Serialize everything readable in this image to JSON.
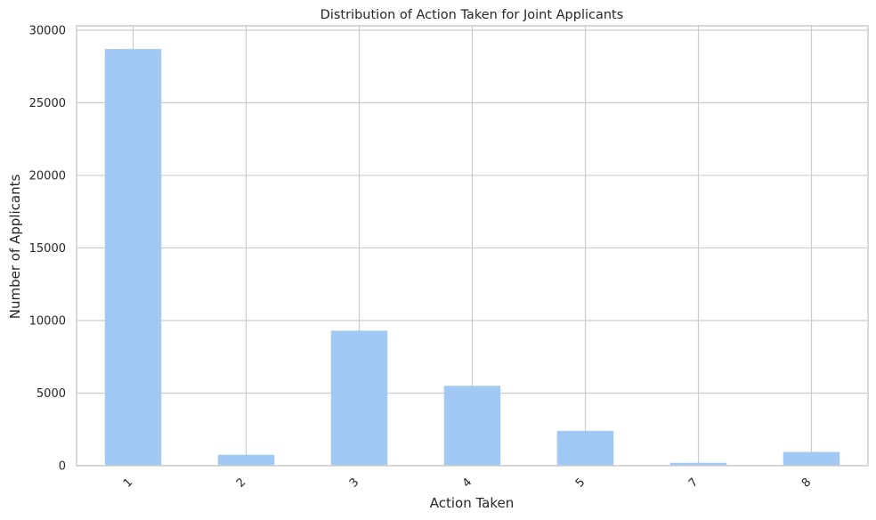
{
  "chart_data": {
    "type": "bar",
    "title": "Distribution of Action Taken for Joint Applicants",
    "xlabel": "Action Taken",
    "ylabel": "Number of Applicants",
    "categories": [
      "1",
      "2",
      "3",
      "4",
      "5",
      "7",
      "8"
    ],
    "values": [
      28700,
      750,
      9300,
      5500,
      2400,
      200,
      950
    ],
    "ylim": [
      0,
      30300
    ],
    "yticks": [
      0,
      5000,
      10000,
      15000,
      20000,
      25000,
      30000
    ],
    "grid": true,
    "legend": "none",
    "colors": {
      "bar": "#a1c9f4",
      "grid": "#cccccc",
      "spine": "#cccccc",
      "background": "#ffffff"
    }
  }
}
